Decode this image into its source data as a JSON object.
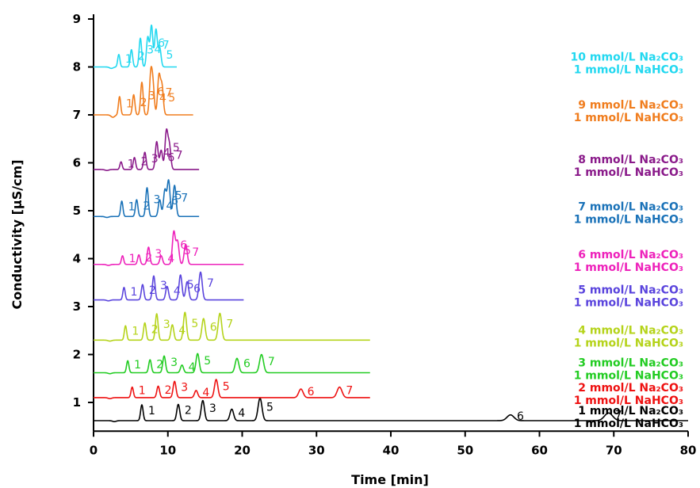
{
  "chart_data": {
    "type": "line",
    "xlabel": "Time [min]",
    "ylabel": "Conductivity [µS/cm]",
    "xlim": [
      0,
      80
    ],
    "ylim": [
      0.4,
      9.1
    ],
    "x_ticks": [
      0,
      10,
      20,
      30,
      40,
      50,
      60,
      70,
      80
    ],
    "y_ticks": [
      1,
      2,
      3,
      4,
      5,
      6,
      7,
      8,
      9
    ],
    "grid": false,
    "legend_position": "right",
    "series": [
      {
        "name_line1": "1 mmol/L Na₂CO₃",
        "name_line2": "1 mmol/L NaHCO₃",
        "color": "#000000",
        "baseline": 0.62,
        "x_end": 80,
        "dip": [
          2.8,
          -0.02
        ],
        "peaks": [
          {
            "label": "1",
            "t": 6.5,
            "h": 0.33
          },
          {
            "label": "2",
            "t": 11.4,
            "h": 0.34
          },
          {
            "label": "3",
            "t": 14.7,
            "h": 0.42
          },
          {
            "label": "4",
            "t": 18.6,
            "h": 0.24
          },
          {
            "label": "5",
            "t": 22.4,
            "h": 0.47
          },
          {
            "label": "6",
            "t": 56.1,
            "h": 0.12
          },
          {
            "label": "7",
            "t": 69.3,
            "h": 0.16
          }
        ]
      },
      {
        "name_line1": "2 mmol/L Na₂CO₃",
        "name_line2": "1 mmol/L NaHCO₃",
        "color": "#ee1111",
        "baseline": 1.1,
        "x_end": 37.2,
        "dip": [
          2.2,
          -0.02
        ],
        "peaks": [
          {
            "label": "1",
            "t": 5.2,
            "h": 0.22
          },
          {
            "label": "2",
            "t": 8.7,
            "h": 0.24
          },
          {
            "label": "3",
            "t": 10.9,
            "h": 0.34
          },
          {
            "label": "4",
            "t": 13.8,
            "h": 0.15
          },
          {
            "label": "5",
            "t": 16.5,
            "h": 0.38
          },
          {
            "label": "6",
            "t": 27.9,
            "h": 0.18
          },
          {
            "label": "7",
            "t": 33.1,
            "h": 0.22
          }
        ]
      },
      {
        "name_line1": "3 mmol/L Na₂CO₃",
        "name_line2": "1 mmol/L NaHCO₃",
        "color": "#22cc22",
        "baseline": 1.62,
        "x_end": 37.2,
        "dip": [
          2.2,
          -0.02
        ],
        "peaks": [
          {
            "label": "1",
            "t": 4.6,
            "h": 0.25
          },
          {
            "label": "2",
            "t": 7.6,
            "h": 0.27
          },
          {
            "label": "3",
            "t": 9.5,
            "h": 0.35
          },
          {
            "label": "4",
            "t": 11.9,
            "h": 0.16
          },
          {
            "label": "5",
            "t": 14.0,
            "h": 0.4
          },
          {
            "label": "6",
            "t": 19.3,
            "h": 0.3
          },
          {
            "label": "7",
            "t": 22.6,
            "h": 0.38
          }
        ]
      },
      {
        "name_line1": "4 mmol/L Na₂CO₃",
        "name_line2": "1 mmol/L NaHCO₃",
        "color": "#b5d31a",
        "baseline": 2.3,
        "x_end": 37.2,
        "dip": [
          2.2,
          -0.02
        ],
        "peaks": [
          {
            "label": "1",
            "t": 4.3,
            "h": 0.3
          },
          {
            "label": "2",
            "t": 6.9,
            "h": 0.36
          },
          {
            "label": "3",
            "t": 8.5,
            "h": 0.55
          },
          {
            "label": "4",
            "t": 10.6,
            "h": 0.32
          },
          {
            "label": "5",
            "t": 12.3,
            "h": 0.58
          },
          {
            "label": "6",
            "t": 14.8,
            "h": 0.45
          },
          {
            "label": "7",
            "t": 17.0,
            "h": 0.56
          }
        ]
      },
      {
        "name_line1": "5 mmol/L Na₂CO₃",
        "name_line2": "1 mmol/L NaHCO₃",
        "color": "#5a44dd",
        "baseline": 3.14,
        "x_end": 20.2,
        "dip": [
          2.0,
          -0.02
        ],
        "peaks": [
          {
            "label": "1",
            "t": 4.1,
            "h": 0.26
          },
          {
            "label": "2",
            "t": 6.6,
            "h": 0.32
          },
          {
            "label": "3",
            "t": 8.1,
            "h": 0.5
          },
          {
            "label": "4",
            "t": 9.9,
            "h": 0.28
          },
          {
            "label": "5",
            "t": 11.7,
            "h": 0.52
          },
          {
            "label": "6",
            "t": 12.6,
            "h": 0.38
          },
          {
            "label": "7",
            "t": 14.4,
            "h": 0.58
          }
        ]
      },
      {
        "name_line1": "6 mmol/L Na₂CO₃",
        "name_line2": "1 mmol/L NaHCO₃",
        "color": "#ee22bb",
        "baseline": 3.88,
        "x_end": 20.2,
        "dip": [
          2.0,
          -0.02
        ],
        "peaks": [
          {
            "label": "1",
            "t": 3.9,
            "h": 0.18
          },
          {
            "label": "2",
            "t": 6.1,
            "h": 0.2
          },
          {
            "label": "3",
            "t": 7.4,
            "h": 0.36
          },
          {
            "label": "4",
            "t": 9.1,
            "h": 0.18
          },
          {
            "label": "5",
            "t": 11.3,
            "h": 0.48
          },
          {
            "label": "6",
            "t": 10.8,
            "h": 0.68
          },
          {
            "label": "7",
            "t": 12.4,
            "h": 0.42
          }
        ]
      },
      {
        "name_line1": "7 mmol/L Na₂CO₃",
        "name_line2": "1 mmol/L NaHCO₃",
        "color": "#1a72b8",
        "baseline": 4.88,
        "x_end": 14.2,
        "dip": [
          1.8,
          -0.02
        ],
        "peaks": [
          {
            "label": "1",
            "t": 3.8,
            "h": 0.32
          },
          {
            "label": "2",
            "t": 5.8,
            "h": 0.35
          },
          {
            "label": "3",
            "t": 7.2,
            "h": 0.6
          },
          {
            "label": "4",
            "t": 8.9,
            "h": 0.35
          },
          {
            "label": "5",
            "t": 10.1,
            "h": 0.75
          },
          {
            "label": "6",
            "t": 9.6,
            "h": 0.55
          },
          {
            "label": "7",
            "t": 10.9,
            "h": 0.65
          }
        ]
      },
      {
        "name_line1": "8 mmol/L Na₂CO₃",
        "name_line2": "1 mmol/L NaHCO₃",
        "color": "#8a1a8a",
        "baseline": 5.86,
        "x_end": 14.2,
        "dip": [
          1.8,
          -0.02
        ],
        "peaks": [
          {
            "label": "1",
            "t": 3.7,
            "h": 0.16
          },
          {
            "label": "2",
            "t": 5.5,
            "h": 0.25
          },
          {
            "label": "3",
            "t": 6.9,
            "h": 0.36
          },
          {
            "label": "4",
            "t": 8.5,
            "h": 0.58
          },
          {
            "label": "5",
            "t": 9.8,
            "h": 0.78
          },
          {
            "label": "6",
            "t": 9.1,
            "h": 0.4
          },
          {
            "label": "7",
            "t": 10.2,
            "h": 0.5
          }
        ]
      },
      {
        "name_line1": "9 mmol/L Na₂CO₃",
        "name_line2": "1 mmol/L NaHCO₃",
        "color": "#f07d1e",
        "baseline": 7.0,
        "x_end": 13.4,
        "dip": [
          2.6,
          -0.05
        ],
        "peaks": [
          {
            "label": "1",
            "t": 3.5,
            "h": 0.38
          },
          {
            "label": "2",
            "t": 5.4,
            "h": 0.42
          },
          {
            "label": "3",
            "t": 6.5,
            "h": 0.68
          },
          {
            "label": "4",
            "t": 8.0,
            "h": 0.58
          },
          {
            "label": "5",
            "t": 9.2,
            "h": 0.6
          },
          {
            "label": "6",
            "t": 7.7,
            "h": 0.82
          },
          {
            "label": "7",
            "t": 8.8,
            "h": 0.8
          }
        ]
      },
      {
        "name_line1": "10 mmol/L Na₂CO₃",
        "name_line2": "1 mmol/L NaHCO₃",
        "color": "#22d8f0",
        "baseline": 8.0,
        "x_end": 11.2,
        "dip": [
          2.4,
          -0.03
        ],
        "peaks": [
          {
            "label": "1",
            "t": 3.4,
            "h": 0.26
          },
          {
            "label": "2",
            "t": 5.1,
            "h": 0.36
          },
          {
            "label": "3",
            "t": 6.3,
            "h": 0.6
          },
          {
            "label": "4",
            "t": 7.3,
            "h": 0.62
          },
          {
            "label": "5",
            "t": 8.9,
            "h": 0.4
          },
          {
            "label": "6",
            "t": 7.8,
            "h": 0.86
          },
          {
            "label": "7",
            "t": 8.4,
            "h": 0.78
          }
        ]
      }
    ]
  }
}
